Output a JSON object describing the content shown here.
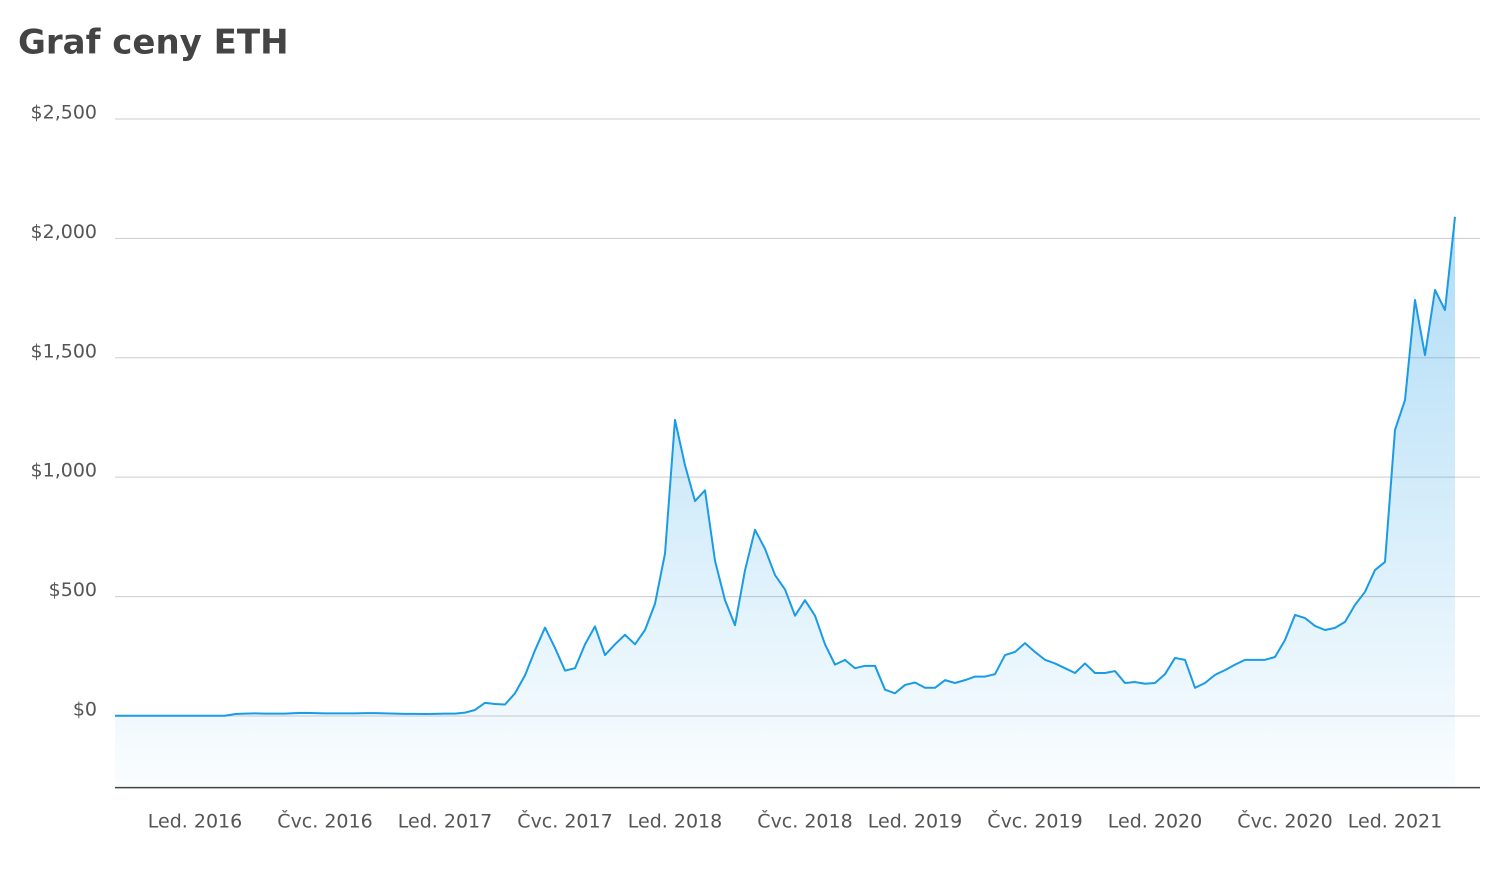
{
  "chart_data": {
    "type": "line",
    "title": "Graf ceny ETH",
    "categories": [
      null,
      null,
      null,
      null,
      null,
      null,
      null,
      null,
      "Led. 2016",
      null,
      null,
      null,
      null,
      null,
      null,
      null,
      null,
      null,
      null,
      null,
      null,
      "Čvc. 2016",
      null,
      null,
      null,
      null,
      null,
      null,
      null,
      null,
      null,
      null,
      null,
      "Led. 2017",
      null,
      null,
      null,
      null,
      null,
      null,
      null,
      null,
      null,
      null,
      null,
      "Čvc. 2017",
      null,
      null,
      null,
      null,
      null,
      null,
      null,
      null,
      null,
      null,
      "Led. 2018",
      null,
      null,
      null,
      null,
      null,
      null,
      null,
      null,
      null,
      null,
      null,
      null,
      "Čvc. 2018",
      null,
      null,
      null,
      null,
      null,
      null,
      null,
      null,
      null,
      null,
      "Led. 2019",
      null,
      null,
      null,
      null,
      null,
      null,
      null,
      null,
      null,
      null,
      null,
      "Čvc. 2019",
      null,
      null,
      null,
      null,
      null,
      null,
      null,
      null,
      null,
      null,
      null,
      "Led. 2020",
      null,
      null,
      null,
      null,
      null,
      null,
      null,
      null,
      null,
      null,
      null,
      null,
      "Čvc. 2020",
      null,
      null,
      null,
      null,
      null,
      null,
      null,
      null,
      null,
      null,
      "Led. 2021",
      null,
      null,
      null,
      null,
      null,
      null
    ],
    "values": [
      1,
      1,
      1,
      1,
      1,
      1,
      1,
      1,
      1,
      1,
      1,
      1,
      8,
      10,
      11,
      10,
      10,
      10,
      12,
      13,
      12,
      11,
      11,
      11,
      11,
      12,
      12,
      11,
      10,
      9,
      9,
      8,
      9,
      10,
      10,
      14,
      25,
      55,
      50,
      48,
      95,
      170,
      275,
      370,
      285,
      190,
      200,
      300,
      375,
      255,
      300,
      340,
      300,
      360,
      470,
      680,
      1240,
      1050,
      900,
      945,
      650,
      485,
      380,
      610,
      780,
      700,
      590,
      530,
      420,
      485,
      420,
      300,
      215,
      235,
      200,
      210,
      210,
      110,
      95,
      130,
      140,
      118,
      118,
      150,
      138,
      150,
      165,
      165,
      175,
      255,
      268,
      305,
      268,
      235,
      220,
      200,
      180,
      220,
      180,
      180,
      188,
      138,
      142,
      135,
      138,
      175,
      243,
      235,
      118,
      138,
      172,
      192,
      215,
      235,
      235,
      235,
      247,
      318,
      423,
      410,
      377,
      360,
      369,
      394,
      465,
      520,
      611,
      645,
      1198,
      1323,
      1742,
      1511,
      1784,
      1700,
      2090
    ],
    "color": "#1a9be6",
    "ylim": [
      -300,
      2500
    ],
    "yticks": [
      {
        "value": 0,
        "label": "$0"
      },
      {
        "value": 500,
        "label": "$500"
      },
      {
        "value": 1000,
        "label": "$1,000"
      },
      {
        "value": 1500,
        "label": "$1,500"
      },
      {
        "value": 2000,
        "label": "$2,000"
      },
      {
        "value": 2500,
        "label": "$2,500"
      }
    ],
    "grid": true
  }
}
